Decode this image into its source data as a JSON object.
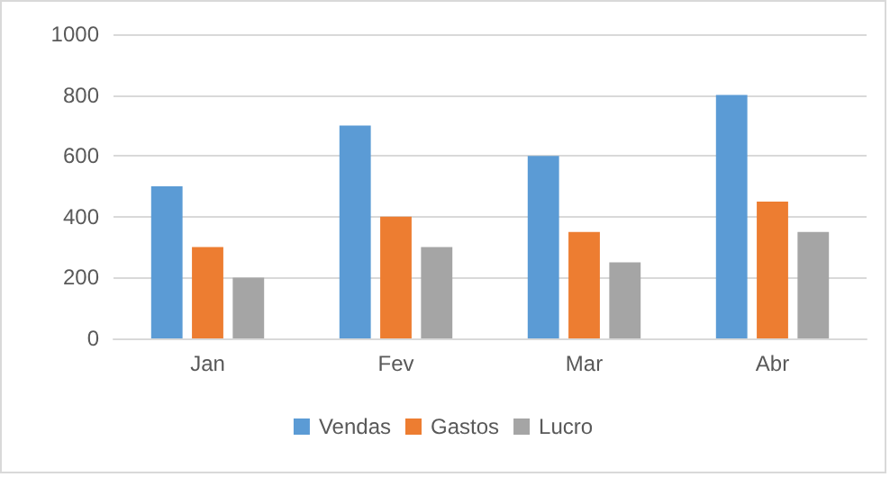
{
  "chart_data": {
    "type": "bar",
    "categories": [
      "Jan",
      "Fev",
      "Mar",
      "Abr"
    ],
    "series": [
      {
        "name": "Vendas",
        "color": "#5b9bd5",
        "values": [
          500,
          700,
          600,
          800
        ]
      },
      {
        "name": "Gastos",
        "color": "#ed7d31",
        "values": [
          300,
          400,
          350,
          450
        ]
      },
      {
        "name": "Lucro",
        "color": "#a5a5a5",
        "values": [
          200,
          300,
          250,
          350
        ]
      }
    ],
    "ylim": [
      0,
      1000
    ],
    "yticks": [
      0,
      200,
      400,
      600,
      800,
      1000
    ],
    "grid": "y",
    "legend": "bottom"
  }
}
